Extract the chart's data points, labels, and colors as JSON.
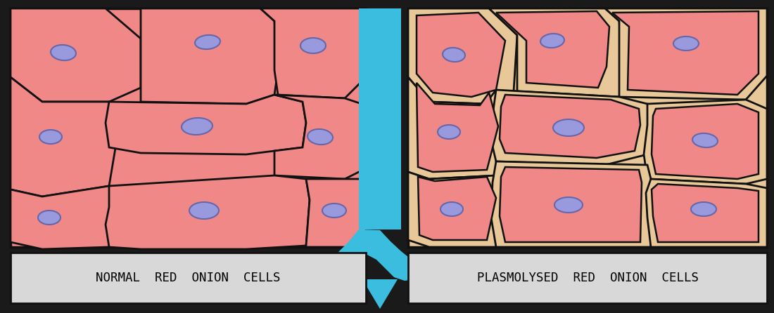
{
  "bg_color": "#1a1a1a",
  "left_panel_color": "#f08888",
  "right_panel_bg": "#e8c898",
  "right_cell_color": "#f08888",
  "cell_wall_color": "#111111",
  "nucleus_color": "#9999dd",
  "nucleus_edge": "#6666aa",
  "label_bg": "#d8d8d8",
  "arrow_color": "#3bbde0",
  "label_left": "NORMAL  RED  ONION  CELLS",
  "label_right": "PLASMOLYSED  RED  ONION  CELLS",
  "label_fontsize": 12.5,
  "panel_border": "#111111"
}
